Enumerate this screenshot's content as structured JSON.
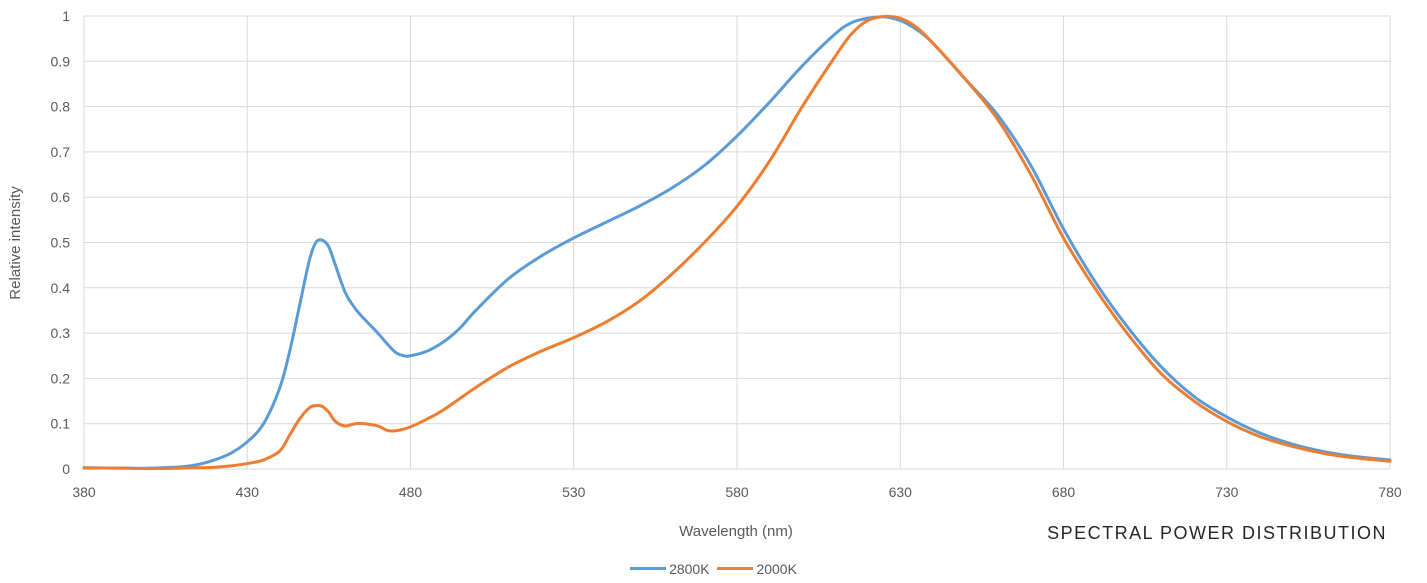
{
  "chart_data": {
    "type": "line",
    "title": "SPECTRAL POWER DISTRIBUTION",
    "xlabel": "Wavelength (nm)",
    "ylabel": "Relative intensity",
    "xlim": [
      380,
      780
    ],
    "ylim": [
      0,
      1
    ],
    "xticks": [
      380,
      430,
      480,
      530,
      580,
      630,
      680,
      730,
      780
    ],
    "yticks": [
      0,
      0.1,
      0.2,
      0.3,
      0.4,
      0.5,
      0.6,
      0.7,
      0.8,
      0.9,
      1
    ],
    "ytick_labels": [
      "0",
      "0.1",
      "0.2",
      "0.3",
      "0.4",
      "0.5",
      "0.6",
      "0.7",
      "0.8",
      "0.9",
      "1"
    ],
    "grid": true,
    "legend_position": "bottom",
    "series": [
      {
        "name": "2800K",
        "color": "#5B9BD5",
        "x": [
          380,
          390,
          400,
          410,
          415,
          420,
          425,
          430,
          435,
          440,
          443,
          446,
          449,
          451,
          453,
          455,
          457,
          460,
          463,
          466,
          470,
          475,
          478,
          480,
          485,
          490,
          495,
          500,
          510,
          520,
          530,
          540,
          550,
          560,
          570,
          580,
          590,
          600,
          610,
          615,
          620,
          625,
          630,
          635,
          640,
          650,
          660,
          670,
          680,
          690,
          700,
          710,
          720,
          730,
          740,
          750,
          760,
          770,
          780
        ],
        "y": [
          0.003,
          0.002,
          0.002,
          0.005,
          0.01,
          0.02,
          0.035,
          0.06,
          0.1,
          0.18,
          0.26,
          0.36,
          0.46,
          0.5,
          0.505,
          0.49,
          0.45,
          0.39,
          0.355,
          0.33,
          0.3,
          0.26,
          0.25,
          0.25,
          0.26,
          0.28,
          0.31,
          0.35,
          0.42,
          0.47,
          0.51,
          0.545,
          0.58,
          0.62,
          0.67,
          0.735,
          0.81,
          0.89,
          0.96,
          0.985,
          0.995,
          0.998,
          0.99,
          0.97,
          0.94,
          0.86,
          0.78,
          0.67,
          0.53,
          0.41,
          0.31,
          0.225,
          0.16,
          0.115,
          0.08,
          0.055,
          0.038,
          0.027,
          0.02
        ]
      },
      {
        "name": "2000K",
        "color": "#ED7D31",
        "x": [
          380,
          390,
          400,
          410,
          420,
          425,
          430,
          435,
          440,
          443,
          446,
          449,
          451,
          453,
          455,
          457,
          460,
          463,
          466,
          470,
          473,
          476,
          480,
          485,
          490,
          500,
          510,
          520,
          530,
          540,
          550,
          560,
          570,
          580,
          590,
          600,
          610,
          615,
          620,
          625,
          630,
          635,
          640,
          650,
          660,
          670,
          680,
          690,
          700,
          710,
          720,
          730,
          740,
          750,
          760,
          770,
          780
        ],
        "y": [
          0.002,
          0.002,
          0.001,
          0.002,
          0.004,
          0.007,
          0.012,
          0.02,
          0.04,
          0.075,
          0.11,
          0.135,
          0.14,
          0.138,
          0.125,
          0.105,
          0.095,
          0.1,
          0.1,
          0.095,
          0.085,
          0.085,
          0.093,
          0.11,
          0.13,
          0.18,
          0.225,
          0.26,
          0.29,
          0.325,
          0.37,
          0.43,
          0.5,
          0.58,
          0.68,
          0.8,
          0.91,
          0.96,
          0.99,
          0.999,
          0.995,
          0.975,
          0.94,
          0.86,
          0.77,
          0.65,
          0.51,
          0.395,
          0.295,
          0.21,
          0.15,
          0.105,
          0.072,
          0.05,
          0.034,
          0.024,
          0.017
        ]
      }
    ]
  }
}
